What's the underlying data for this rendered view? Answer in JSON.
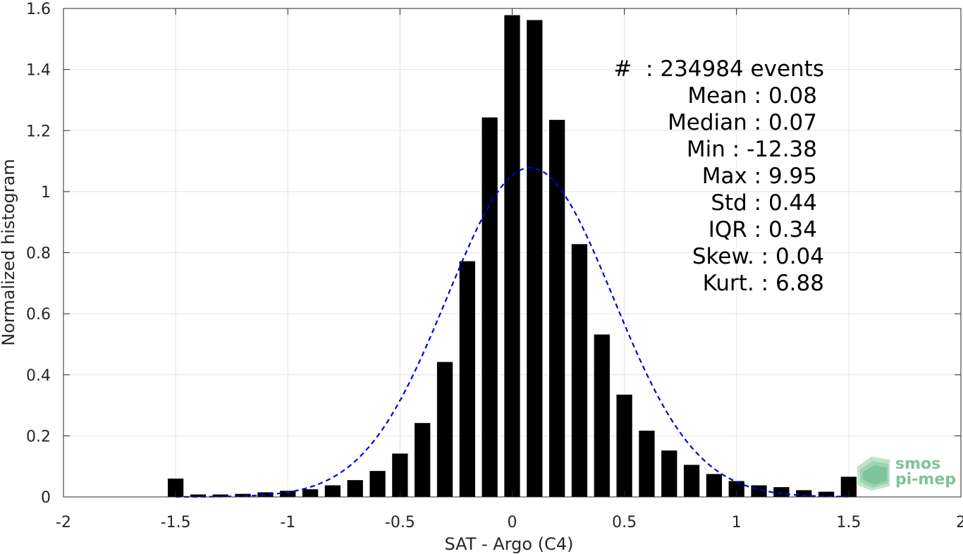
{
  "chart_data": {
    "type": "bar",
    "xlabel": "SAT - Argo (C4)",
    "ylabel": "Normalized histogram",
    "xlim": [
      -2,
      2
    ],
    "ylim": [
      0,
      1.6
    ],
    "xticks": [
      -2,
      -1.5,
      -1,
      -0.5,
      0,
      0.5,
      1,
      1.5,
      2
    ],
    "xtick_labels": [
      "-2",
      "-1.5",
      "-1",
      "-0.5",
      "0",
      "0.5",
      "1",
      "1.5",
      "2"
    ],
    "yticks": [
      0,
      0.2,
      0.4,
      0.6,
      0.8,
      1,
      1.2,
      1.4,
      1.6
    ],
    "ytick_labels": [
      "0",
      "0.2",
      "0.4",
      "0.6",
      "0.8",
      "1",
      "1.2",
      "1.4",
      "1.6"
    ],
    "grid": true,
    "bar_color": "#000000",
    "bin_width": 0.1,
    "x": [
      -1.5,
      -1.4,
      -1.3,
      -1.2,
      -1.1,
      -1.0,
      -0.9,
      -0.8,
      -0.7,
      -0.6,
      -0.5,
      -0.4,
      -0.3,
      -0.2,
      -0.1,
      0.0,
      0.1,
      0.2,
      0.3,
      0.4,
      0.5,
      0.6,
      0.7,
      0.8,
      0.9,
      1.0,
      1.1,
      1.2,
      1.3,
      1.4,
      1.5
    ],
    "values": [
      0.06,
      0.008,
      0.008,
      0.01,
      0.015,
      0.02,
      0.025,
      0.038,
      0.055,
      0.085,
      0.142,
      0.242,
      0.442,
      0.772,
      1.243,
      1.578,
      1.562,
      1.235,
      0.828,
      0.532,
      0.335,
      0.217,
      0.152,
      0.105,
      0.075,
      0.052,
      0.038,
      0.032,
      0.022,
      0.017,
      0.066
    ],
    "fit_curve": {
      "type": "normal",
      "mean": 0.08,
      "std": 0.37,
      "color": "#0000dd",
      "style": "dashed",
      "x_range": [
        -1.5,
        1.5
      ]
    },
    "annotations": [
      "#  : 234984 events",
      "Mean : 0.08",
      "Median : 0.07",
      "Min : -12.38",
      "Max : 9.95",
      "Std : 0.44",
      "IQR : 0.34",
      "Skew. : 0.04",
      "Kurt. : 6.88"
    ]
  },
  "logo": {
    "line1": "smos",
    "line2": "pi-mep",
    "color": "#7fc39a"
  }
}
